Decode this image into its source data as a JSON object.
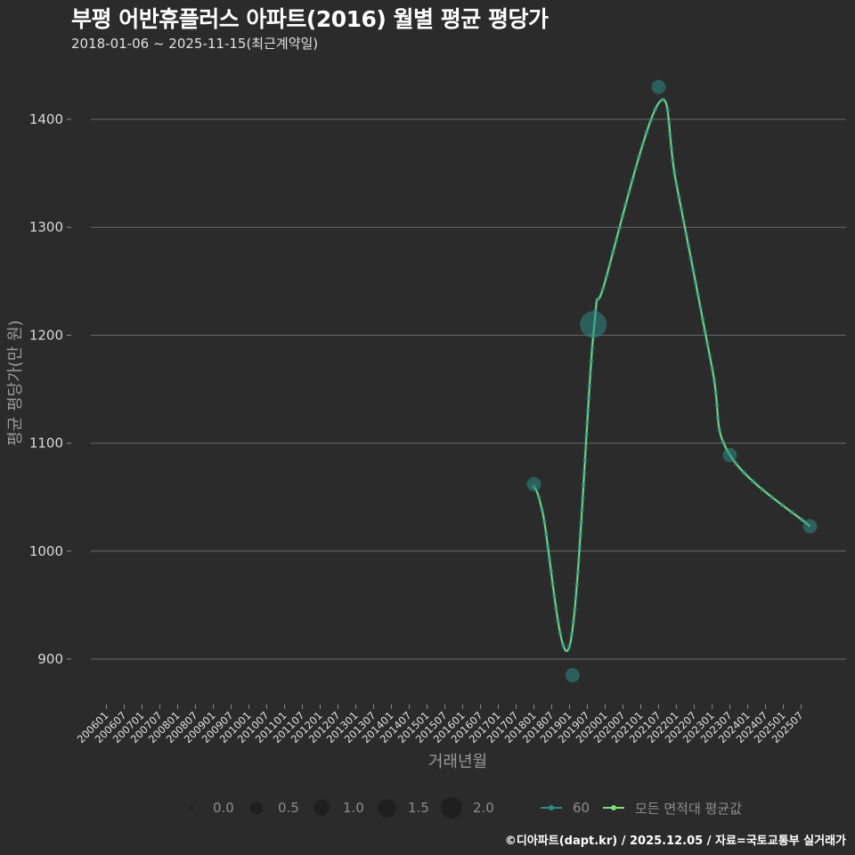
{
  "header": {
    "title": "부평 어반휴플러스 아파트(2016) 월별 평균 평당가",
    "subtitle": "2018-01-06 ~ 2025-11-15(최근계약일)"
  },
  "axes": {
    "ylabel": "평균 평당가(만 원)",
    "xlabel": "거래년월"
  },
  "legend": {
    "size_items": [
      {
        "label": "0.0",
        "r": 2
      },
      {
        "label": "0.5",
        "r": 7
      },
      {
        "label": "1.0",
        "r": 9
      },
      {
        "label": "1.5",
        "r": 10.5
      },
      {
        "label": "2.0",
        "r": 12
      }
    ],
    "series_items": [
      {
        "label": "60",
        "color": "#2e8b84"
      },
      {
        "label": "모든 면적대 평균값",
        "color": "#7fe07a"
      }
    ]
  },
  "footer": {
    "credit": "©디아파트(dapt.kr) / 2025.12.05 / 자료=국토교통부 실거래가"
  },
  "colors": {
    "background": "#2b2b2b",
    "grid": "#6a6a6a",
    "series_60": "#2e8b84",
    "average_line": "#7fe07a"
  },
  "chart_data": {
    "type": "line",
    "title": "부평 어반휴플러스 아파트(2016) 월별 평균 평당가",
    "subtitle": "2018-01-06 ~ 2025-11-15(최근계약일)",
    "xlabel": "거래년월",
    "ylabel": "평균 평당가(만 원)",
    "ylim": [
      865,
      1440
    ],
    "yticks": [
      900,
      1000,
      1100,
      1200,
      1300,
      1400
    ],
    "grid": true,
    "legend_position": "bottom",
    "x_ticks": [
      "200601",
      "200607",
      "200701",
      "200707",
      "200801",
      "200807",
      "200901",
      "200907",
      "201001",
      "201007",
      "201101",
      "201107",
      "201201",
      "201207",
      "201301",
      "201307",
      "201401",
      "201407",
      "201501",
      "201507",
      "201601",
      "201607",
      "201701",
      "201707",
      "201801",
      "201807",
      "201901",
      "201907",
      "202001",
      "202007",
      "202101",
      "202107",
      "202201",
      "202207",
      "202301",
      "202307",
      "202401",
      "202407",
      "202501",
      "202507"
    ],
    "series": [
      {
        "name": "60",
        "kind": "scatter (size = 거래건수)",
        "points": [
          {
            "x": "201801",
            "y": 1062,
            "size": 1.0
          },
          {
            "x": "201902",
            "y": 885,
            "size": 1.0
          },
          {
            "x": "201909",
            "y": 1210,
            "size": 2.0
          },
          {
            "x": "202107",
            "y": 1430,
            "size": 1.0
          },
          {
            "x": "202307",
            "y": 1089,
            "size": 1.0
          },
          {
            "x": "202510",
            "y": 1023,
            "size": 1.0
          }
        ]
      },
      {
        "name": "모든 면적대 평균값",
        "kind": "smoothed line",
        "points": [
          {
            "x": "201801",
            "y": 1060
          },
          {
            "x": "201804",
            "y": 1035
          },
          {
            "x": "201901",
            "y": 912
          },
          {
            "x": "201909",
            "y": 1200
          },
          {
            "x": "202001",
            "y": 1250
          },
          {
            "x": "202107",
            "y": 1415
          },
          {
            "x": "202201",
            "y": 1340
          },
          {
            "x": "202301",
            "y": 1170
          },
          {
            "x": "202307",
            "y": 1089
          },
          {
            "x": "202510",
            "y": 1023
          }
        ]
      }
    ]
  }
}
